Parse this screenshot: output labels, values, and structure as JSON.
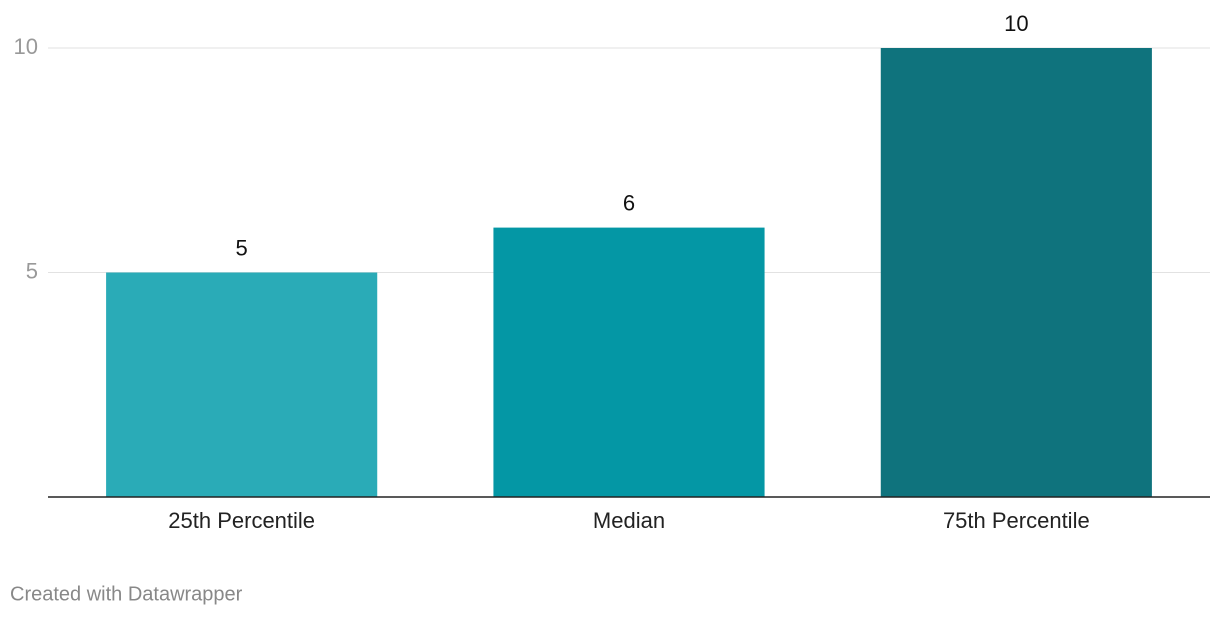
{
  "chart_data": {
    "type": "bar",
    "categories": [
      "25th Percentile",
      "Median",
      "75th Percentile"
    ],
    "values": [
      5,
      6,
      10
    ],
    "colors": [
      "#2aabb7",
      "#0497a5",
      "#0f737d"
    ],
    "ylim": [
      0,
      10
    ],
    "yticks": [
      5,
      10
    ],
    "grid": true,
    "footer": "Created with Datawrapper"
  }
}
